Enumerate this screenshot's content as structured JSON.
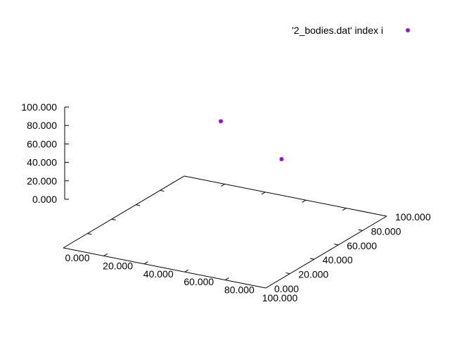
{
  "chart_data": {
    "type": "scatter",
    "projection": "3d",
    "legend": {
      "label": "'2_bodies.dat' index i",
      "placement": "top-right"
    },
    "axes": {
      "x": {
        "range": [
          0,
          100
        ],
        "ticks": [
          0,
          20,
          40,
          60,
          80,
          100
        ],
        "tick_labels": [
          "0.000",
          "20.000",
          "40.000",
          "60.000",
          "80.000",
          "100.000"
        ]
      },
      "y": {
        "range": [
          0,
          100
        ],
        "ticks": [
          0,
          20,
          40,
          60,
          80,
          100
        ],
        "tick_labels": [
          "0.000",
          "20.000",
          "40.000",
          "60.000",
          "80.000",
          "100.000"
        ]
      },
      "z": {
        "range": [
          0,
          100
        ],
        "ticks": [
          0,
          20,
          40,
          60,
          80,
          100
        ],
        "tick_labels": [
          "0.000",
          "20.000",
          "40.000",
          "60.000",
          "80.000",
          "100.000"
        ]
      }
    },
    "grid": false,
    "series": [
      {
        "name": "'2_bodies.dat' index i",
        "color": "#9400d3",
        "marker": "star",
        "points": [
          {
            "x": 30,
            "y": 80,
            "z": 88
          },
          {
            "x": 60,
            "y": 80,
            "z": 60
          }
        ]
      }
    ]
  }
}
